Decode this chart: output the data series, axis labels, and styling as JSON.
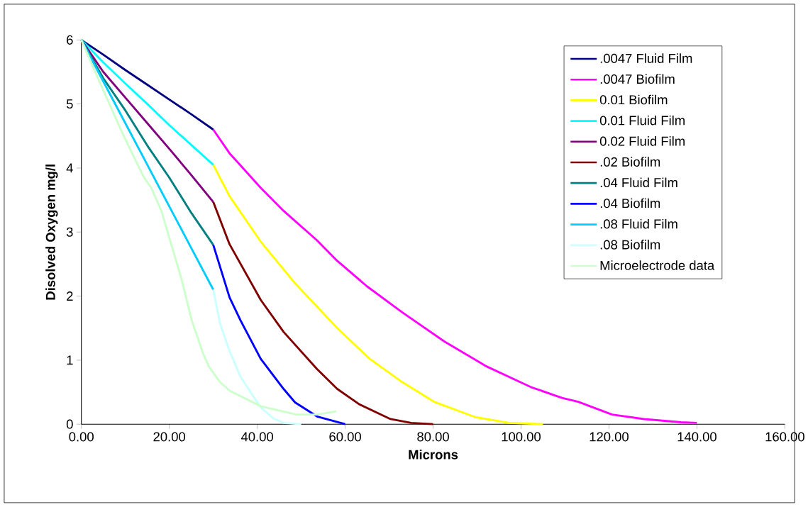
{
  "chart_data": {
    "type": "line",
    "xlabel": "Microns",
    "ylabel": "Disolved Oxygen mg/l",
    "xlim": [
      0,
      160
    ],
    "ylim": [
      0,
      6
    ],
    "xticks": [
      {
        "value": 0,
        "label": "0.00"
      },
      {
        "value": 20,
        "label": "20.00"
      },
      {
        "value": 40,
        "label": "40.00"
      },
      {
        "value": 60,
        "label": "60.00"
      },
      {
        "value": 80,
        "label": "80.00"
      },
      {
        "value": 100,
        "label": "100.00"
      },
      {
        "value": 120,
        "label": "120.00"
      },
      {
        "value": 140,
        "label": "140.00"
      },
      {
        "value": 160,
        "label": "160.00"
      }
    ],
    "yticks": [
      0,
      1,
      2,
      3,
      4,
      5,
      6
    ],
    "grid": false,
    "legend": "top right",
    "marker": "none",
    "line_style": "solid",
    "series": [
      {
        "name": ".0047 Fluid Film",
        "color": "#000080",
        "x": [
          0,
          5,
          10,
          15,
          20,
          25,
          30
        ],
        "values": [
          6,
          5.77,
          5.53,
          5.3,
          5.07,
          4.84,
          4.6
        ]
      },
      {
        "name": ".0047 Biofilm",
        "color": "#ff00ff",
        "x": [
          30,
          33.7,
          36.2,
          40.8,
          46,
          53.6,
          58.2,
          65,
          72.9,
          82.6,
          92.2,
          102.2,
          109.3,
          113,
          120.7,
          128,
          136.4,
          140
        ],
        "values": [
          4.6,
          4.23,
          4.04,
          3.69,
          3.33,
          2.87,
          2.55,
          2.15,
          1.75,
          1.29,
          0.9,
          0.58,
          0.41,
          0.35,
          0.15,
          0.08,
          0.03,
          0.02
        ]
      },
      {
        "name": "0.01 Biofilm",
        "color": "#ffff00",
        "x": [
          30,
          33.7,
          40.8,
          48.6,
          58.2,
          65.4,
          72.9,
          80.2,
          89.6,
          97.3,
          105
        ],
        "values": [
          4.05,
          3.56,
          2.85,
          2.2,
          1.5,
          1.03,
          0.66,
          0.35,
          0.11,
          0.02,
          0
        ]
      },
      {
        "name": "0.01 Fluid Film",
        "color": "#00ffff",
        "x": [
          0,
          5,
          10,
          15,
          20,
          25,
          30
        ],
        "values": [
          6,
          5.65,
          5.32,
          5.0,
          4.67,
          4.36,
          4.05
        ]
      },
      {
        "name": "0.02 Fluid Film",
        "color": "#800080",
        "x": [
          0,
          5,
          10,
          15,
          20,
          25,
          30
        ],
        "values": [
          6,
          5.5,
          5.1,
          4.7,
          4.3,
          3.89,
          3.47
        ]
      },
      {
        "name": ".02 Biofilm",
        "color": "#800000",
        "x": [
          30,
          33.7,
          40.8,
          46,
          53.6,
          58.2,
          63.2,
          70.3,
          75,
          80
        ],
        "values": [
          3.47,
          2.81,
          1.94,
          1.44,
          0.86,
          0.55,
          0.31,
          0.08,
          0.02,
          0
        ]
      },
      {
        "name": ".04 Fluid Film",
        "color": "#008080",
        "x": [
          0,
          5,
          10,
          15,
          20,
          25,
          30
        ],
        "values": [
          6,
          5.4,
          4.9,
          4.35,
          3.85,
          3.3,
          2.8
        ]
      },
      {
        "name": ".04 Biofilm",
        "color": "#0000ff",
        "x": [
          30,
          33.7,
          36.2,
          40.8,
          46,
          48.6,
          53.6,
          60
        ],
        "values": [
          2.8,
          1.98,
          1.62,
          1.02,
          0.55,
          0.34,
          0.12,
          0
        ]
      },
      {
        "name": ".08 Fluid Film",
        "color": "#00ccff",
        "x": [
          0,
          5,
          10,
          15,
          20,
          25,
          30
        ],
        "values": [
          6,
          5.35,
          4.7,
          4.05,
          3.4,
          2.75,
          2.1
        ]
      },
      {
        "name": ".08 Biofilm",
        "color": "#ccffff",
        "x": [
          30,
          31.5,
          33.7,
          36.2,
          40.8,
          43.7,
          46,
          50
        ],
        "values": [
          2.1,
          1.58,
          1.14,
          0.74,
          0.26,
          0.09,
          0.02,
          0
        ]
      },
      {
        "name": "Microelectrode data",
        "color": "#ccffcc",
        "x": [
          0,
          4.3,
          9.5,
          14.1,
          15.9,
          18.2,
          22.8,
          25.1,
          27.7,
          29,
          31.5,
          33.8,
          40.8,
          48.9,
          53.6,
          58
        ],
        "values": [
          6,
          5.32,
          4.52,
          3.87,
          3.69,
          3.33,
          2.26,
          1.62,
          1.1,
          0.9,
          0.66,
          0.52,
          0.28,
          0.15,
          0.15,
          0.2
        ]
      }
    ]
  }
}
